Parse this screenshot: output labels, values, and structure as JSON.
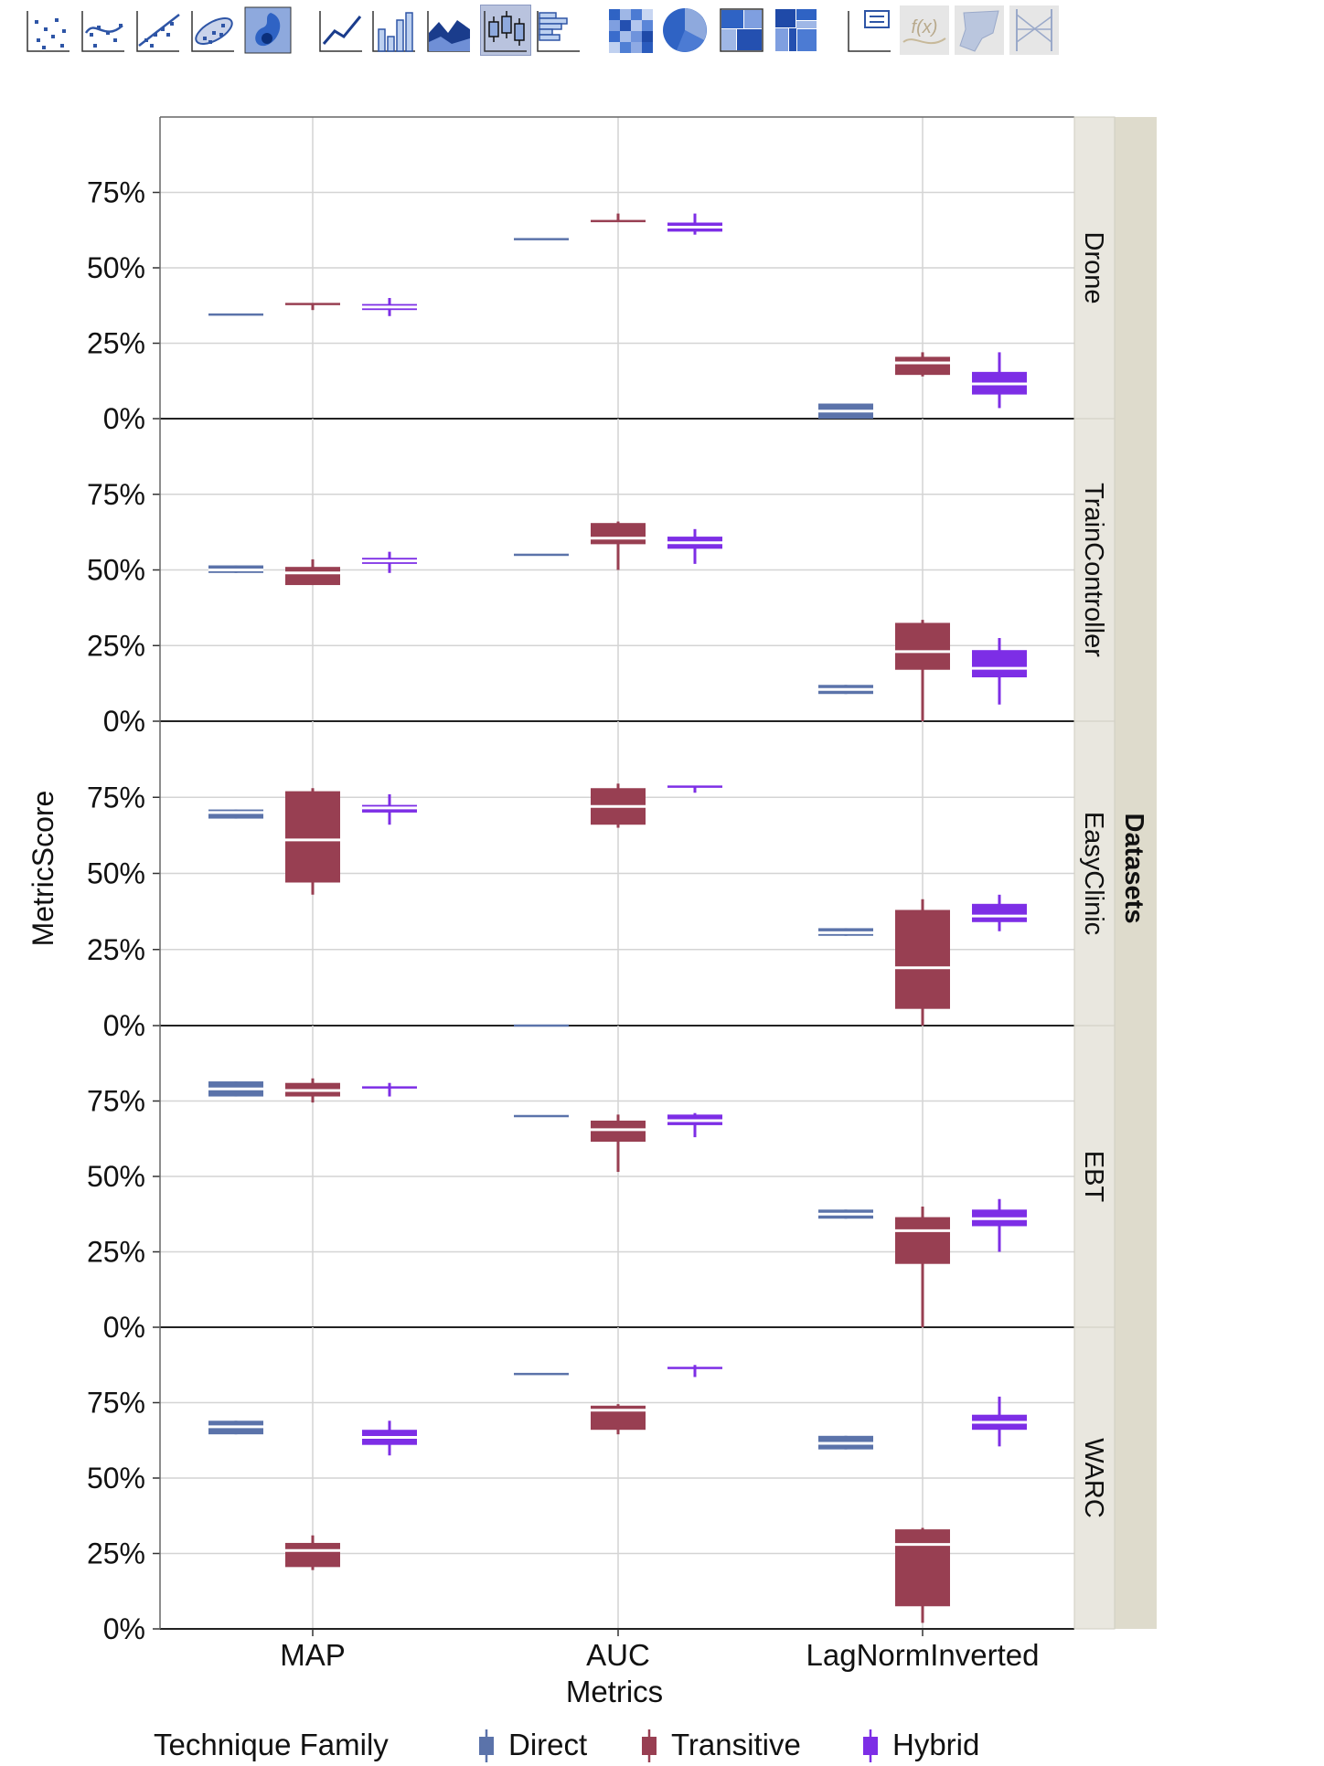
{
  "toolbar": {
    "buttons": [
      {
        "icon": "scatter-plot-icon"
      },
      {
        "icon": "scatter-smooth-icon"
      },
      {
        "icon": "scatter-line-fit-icon"
      },
      {
        "icon": "density-ellipse-icon"
      },
      {
        "icon": "contour-icon"
      },
      {
        "icon": "line-chart-icon"
      },
      {
        "icon": "bar-chart-icon"
      },
      {
        "icon": "area-chart-icon"
      },
      {
        "icon": "box-plot-icon",
        "active": true
      },
      {
        "icon": "histogram-icon"
      },
      {
        "icon": "heatmap-icon"
      },
      {
        "icon": "pie-chart-icon"
      },
      {
        "icon": "treemap-icon"
      },
      {
        "icon": "mosaic-icon"
      },
      {
        "icon": "caption-box-icon"
      },
      {
        "icon": "formula-icon"
      },
      {
        "icon": "map-shape-icon"
      },
      {
        "icon": "parallel-plot-icon"
      }
    ],
    "formula_glyph": "f(x)"
  },
  "chart_data": {
    "type": "box",
    "title": "",
    "xlabel": "Metrics",
    "ylabel": "MetricScore",
    "facet_label": "Datasets",
    "categories": [
      "MAP",
      "AUC",
      "LagNormInverted"
    ],
    "y_ticks": [
      "0%",
      "25%",
      "50%",
      "75%"
    ],
    "ylim": [
      0,
      100
    ],
    "grid": true,
    "legend": {
      "title": "Technique Family",
      "placement": "bottom",
      "items": [
        {
          "name": "Direct",
          "color": "#5b73aa"
        },
        {
          "name": "Transitive",
          "color": "#983f52"
        },
        {
          "name": "Hybrid",
          "color": "#7d2ee6"
        }
      ]
    },
    "panels": [
      {
        "name": "Drone",
        "boxes": [
          {
            "metric": "MAP",
            "family": "Direct",
            "min": 34.5,
            "q1": 34.5,
            "median": 34.5,
            "q3": 34.5,
            "max": 34.5
          },
          {
            "metric": "MAP",
            "family": "Transitive",
            "min": 36,
            "q1": 38,
            "median": 38,
            "q3": 38,
            "max": 38
          },
          {
            "metric": "MAP",
            "family": "Hybrid",
            "min": 34,
            "q1": 36,
            "median": 37,
            "q3": 38,
            "max": 40
          },
          {
            "metric": "AUC",
            "family": "Direct",
            "min": 59.5,
            "q1": 59.5,
            "median": 59.5,
            "q3": 59.5,
            "max": 59.5
          },
          {
            "metric": "AUC",
            "family": "Transitive",
            "min": 65.5,
            "q1": 65.5,
            "median": 65.5,
            "q3": 65.5,
            "max": 68
          },
          {
            "metric": "AUC",
            "family": "Hybrid",
            "min": 61,
            "q1": 62,
            "median": 63.5,
            "q3": 65,
            "max": 68
          },
          {
            "metric": "LagNormInverted",
            "family": "Direct",
            "min": 0,
            "q1": 0,
            "median": 2.5,
            "q3": 5,
            "max": 5
          },
          {
            "metric": "LagNormInverted",
            "family": "Transitive",
            "min": 14,
            "q1": 14.5,
            "median": 18.5,
            "q3": 20.5,
            "max": 22
          },
          {
            "metric": "LagNormInverted",
            "family": "Hybrid",
            "min": 3.5,
            "q1": 8,
            "median": 11.5,
            "q3": 15.5,
            "max": 22
          }
        ]
      },
      {
        "name": "TrainController",
        "boxes": [
          {
            "metric": "MAP",
            "family": "Direct",
            "min": 49,
            "q1": 49,
            "median": 50,
            "q3": 51.5,
            "max": 51.5
          },
          {
            "metric": "MAP",
            "family": "Transitive",
            "min": 45,
            "q1": 45,
            "median": 49,
            "q3": 51,
            "max": 53.5
          },
          {
            "metric": "MAP",
            "family": "Hybrid",
            "min": 49,
            "q1": 52,
            "median": 53,
            "q3": 54,
            "max": 56
          },
          {
            "metric": "AUC",
            "family": "Direct",
            "min": 55,
            "q1": 55,
            "median": 55,
            "q3": 55,
            "max": 55
          },
          {
            "metric": "AUC",
            "family": "Transitive",
            "min": 50,
            "q1": 58.5,
            "median": 60.5,
            "q3": 65.5,
            "max": 66
          },
          {
            "metric": "AUC",
            "family": "Hybrid",
            "min": 52,
            "q1": 57,
            "median": 59,
            "q3": 61,
            "max": 63.5
          },
          {
            "metric": "LagNormInverted",
            "family": "Direct",
            "min": 9,
            "q1": 9,
            "median": 10.5,
            "q3": 12,
            "max": 12
          },
          {
            "metric": "LagNormInverted",
            "family": "Transitive",
            "min": 0,
            "q1": 17,
            "median": 23,
            "q3": 32.5,
            "max": 33.5
          },
          {
            "metric": "LagNormInverted",
            "family": "Hybrid",
            "min": 5.5,
            "q1": 14.5,
            "median": 17.5,
            "q3": 23.5,
            "max": 27.5
          }
        ]
      },
      {
        "name": "EasyClinic",
        "boxes": [
          {
            "metric": "MAP",
            "family": "Direct",
            "min": 68,
            "q1": 68,
            "median": 70,
            "q3": 71,
            "max": 71
          },
          {
            "metric": "MAP",
            "family": "Transitive",
            "min": 43,
            "q1": 47,
            "median": 61,
            "q3": 77,
            "max": 78
          },
          {
            "metric": "MAP",
            "family": "Hybrid",
            "min": 66,
            "q1": 70,
            "median": 71.5,
            "q3": 72.5,
            "max": 76
          },
          {
            "metric": "AUC",
            "family": "Direct",
            "min": 0,
            "q1": 0,
            "median": 0,
            "q3": 0,
            "max": 0
          },
          {
            "metric": "AUC",
            "family": "Transitive",
            "min": 65,
            "q1": 66,
            "median": 72,
            "q3": 78,
            "max": 79.5
          },
          {
            "metric": "AUC",
            "family": "Hybrid",
            "min": 76.5,
            "q1": 78.5,
            "median": 78.5,
            "q3": 78.5,
            "max": 78.5
          },
          {
            "metric": "LagNormInverted",
            "family": "Direct",
            "min": 29.5,
            "q1": 29.5,
            "median": 30.5,
            "q3": 32,
            "max": 32
          },
          {
            "metric": "LagNormInverted",
            "family": "Transitive",
            "min": 0,
            "q1": 5.5,
            "median": 19,
            "q3": 38,
            "max": 41.5
          },
          {
            "metric": "LagNormInverted",
            "family": "Hybrid",
            "min": 31,
            "q1": 34,
            "median": 36,
            "q3": 40,
            "max": 43
          }
        ]
      },
      {
        "name": "EBT",
        "boxes": [
          {
            "metric": "MAP",
            "family": "Direct",
            "min": 76.5,
            "q1": 76.5,
            "median": 79,
            "q3": 81.5,
            "max": 81.5
          },
          {
            "metric": "MAP",
            "family": "Transitive",
            "min": 74.5,
            "q1": 76.5,
            "median": 78.5,
            "q3": 81,
            "max": 82.5
          },
          {
            "metric": "MAP",
            "family": "Hybrid",
            "min": 76.5,
            "q1": 79.5,
            "median": 79.5,
            "q3": 79.5,
            "max": 81
          },
          {
            "metric": "AUC",
            "family": "Direct",
            "min": 70,
            "q1": 70,
            "median": 70,
            "q3": 70,
            "max": 70
          },
          {
            "metric": "AUC",
            "family": "Transitive",
            "min": 51.5,
            "q1": 61.5,
            "median": 65.5,
            "q3": 68.5,
            "max": 70.5
          },
          {
            "metric": "AUC",
            "family": "Hybrid",
            "min": 63,
            "q1": 67,
            "median": 68.5,
            "q3": 70.5,
            "max": 71
          },
          {
            "metric": "LagNormInverted",
            "family": "Direct",
            "min": 36,
            "q1": 36,
            "median": 37.5,
            "q3": 39,
            "max": 39
          },
          {
            "metric": "LagNormInverted",
            "family": "Transitive",
            "min": 0,
            "q1": 21,
            "median": 32,
            "q3": 36.5,
            "max": 40
          },
          {
            "metric": "LagNormInverted",
            "family": "Hybrid",
            "min": 25,
            "q1": 33.5,
            "median": 36,
            "q3": 39,
            "max": 42.5
          }
        ]
      },
      {
        "name": "WARC",
        "boxes": [
          {
            "metric": "MAP",
            "family": "Direct",
            "min": 64.5,
            "q1": 64.5,
            "median": 67,
            "q3": 69,
            "max": 69
          },
          {
            "metric": "MAP",
            "family": "Transitive",
            "min": 19.5,
            "q1": 20.5,
            "median": 26,
            "q3": 28.5,
            "max": 31
          },
          {
            "metric": "MAP",
            "family": "Hybrid",
            "min": 57.5,
            "q1": 61,
            "median": 63.5,
            "q3": 66,
            "max": 69
          },
          {
            "metric": "AUC",
            "family": "Direct",
            "min": 84.5,
            "q1": 84.5,
            "median": 84.5,
            "q3": 84.5,
            "max": 84.5
          },
          {
            "metric": "AUC",
            "family": "Transitive",
            "min": 64.5,
            "q1": 66,
            "median": 72.5,
            "q3": 74,
            "max": 74.5
          },
          {
            "metric": "AUC",
            "family": "Hybrid",
            "min": 83.5,
            "q1": 86.5,
            "median": 86.5,
            "q3": 86.5,
            "max": 87.5
          },
          {
            "metric": "LagNormInverted",
            "family": "Direct",
            "min": 59.5,
            "q1": 59.5,
            "median": 61.5,
            "q3": 64,
            "max": 64
          },
          {
            "metric": "LagNormInverted",
            "family": "Transitive",
            "min": 2,
            "q1": 7.5,
            "median": 28,
            "q3": 33,
            "max": 33.5
          },
          {
            "metric": "LagNormInverted",
            "family": "Hybrid",
            "min": 60.5,
            "q1": 66,
            "median": 68.5,
            "q3": 71,
            "max": 77
          }
        ]
      }
    ]
  }
}
